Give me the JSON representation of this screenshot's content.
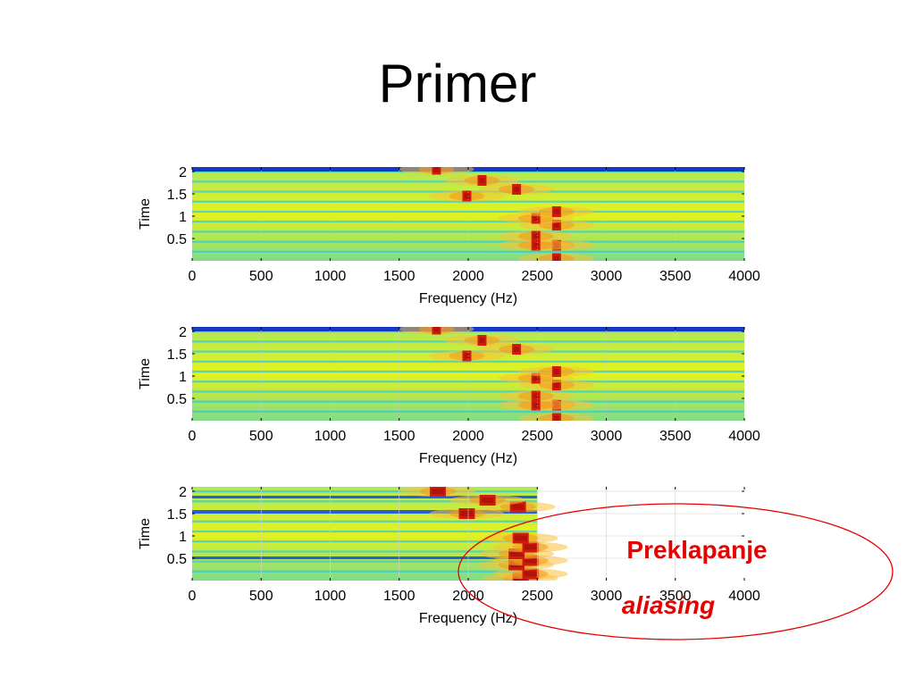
{
  "slide": {
    "title": "Primer"
  },
  "annotation": {
    "line1": "Preklapanje",
    "line2": "aliasing",
    "color": "#e60000"
  },
  "colormap": "jet",
  "chart_data": [
    {
      "type": "heatmap",
      "xlabel": "Frequency (Hz)",
      "ylabel": "Time",
      "xlim": [
        0,
        4000
      ],
      "ylim": [
        0,
        2.1
      ],
      "x_ticks": [
        0,
        500,
        1000,
        1500,
        2000,
        2500,
        3000,
        3500,
        4000
      ],
      "y_ticks": [
        0.5,
        1,
        1.5,
        2
      ],
      "data_xmax": 4000,
      "peaks": [
        {
          "time": 0.05,
          "freq": 2640
        },
        {
          "time": 0.35,
          "freq": 2640
        },
        {
          "time": 0.35,
          "freq": 2490
        },
        {
          "time": 0.55,
          "freq": 2490
        },
        {
          "time": 0.8,
          "freq": 2640
        },
        {
          "time": 0.95,
          "freq": 2490
        },
        {
          "time": 1.1,
          "freq": 2640
        },
        {
          "time": 1.45,
          "freq": 1990
        },
        {
          "time": 1.6,
          "freq": 2350
        },
        {
          "time": 1.8,
          "freq": 2100
        },
        {
          "time": 2.05,
          "freq": 1770
        }
      ]
    },
    {
      "type": "heatmap",
      "xlabel": "Frequency (Hz)",
      "ylabel": "Time",
      "xlim": [
        0,
        4000
      ],
      "ylim": [
        0,
        2.1
      ],
      "x_ticks": [
        0,
        500,
        1000,
        1500,
        2000,
        2500,
        3000,
        3500,
        4000
      ],
      "y_ticks": [
        0.5,
        1,
        1.5,
        2
      ],
      "data_xmax": 4000,
      "peaks": [
        {
          "time": 0.05,
          "freq": 2640
        },
        {
          "time": 0.35,
          "freq": 2640
        },
        {
          "time": 0.35,
          "freq": 2490
        },
        {
          "time": 0.55,
          "freq": 2490
        },
        {
          "time": 0.8,
          "freq": 2640
        },
        {
          "time": 0.95,
          "freq": 2490
        },
        {
          "time": 1.1,
          "freq": 2640
        },
        {
          "time": 1.45,
          "freq": 1990
        },
        {
          "time": 1.6,
          "freq": 2350
        },
        {
          "time": 1.8,
          "freq": 2100
        },
        {
          "time": 2.05,
          "freq": 1770
        }
      ]
    },
    {
      "type": "heatmap",
      "xlabel": "Frequency (Hz)",
      "ylabel": "Time",
      "xlim": [
        0,
        4000
      ],
      "ylim": [
        0,
        2.1
      ],
      "x_ticks": [
        0,
        500,
        1000,
        1500,
        2000,
        2500,
        3000,
        3500,
        4000
      ],
      "y_ticks": [
        0.5,
        1,
        1.5,
        2
      ],
      "data_xmax": 2500,
      "peaks": [
        {
          "time": 0.05,
          "freq": 2380
        },
        {
          "time": 0.15,
          "freq": 2450
        },
        {
          "time": 0.35,
          "freq": 2350
        },
        {
          "time": 0.45,
          "freq": 2450
        },
        {
          "time": 0.6,
          "freq": 2350
        },
        {
          "time": 0.75,
          "freq": 2450
        },
        {
          "time": 0.95,
          "freq": 2380
        },
        {
          "time": 1.5,
          "freq": 1990
        },
        {
          "time": 1.65,
          "freq": 2360
        },
        {
          "time": 1.8,
          "freq": 2140
        },
        {
          "time": 2.0,
          "freq": 1780
        }
      ]
    }
  ]
}
